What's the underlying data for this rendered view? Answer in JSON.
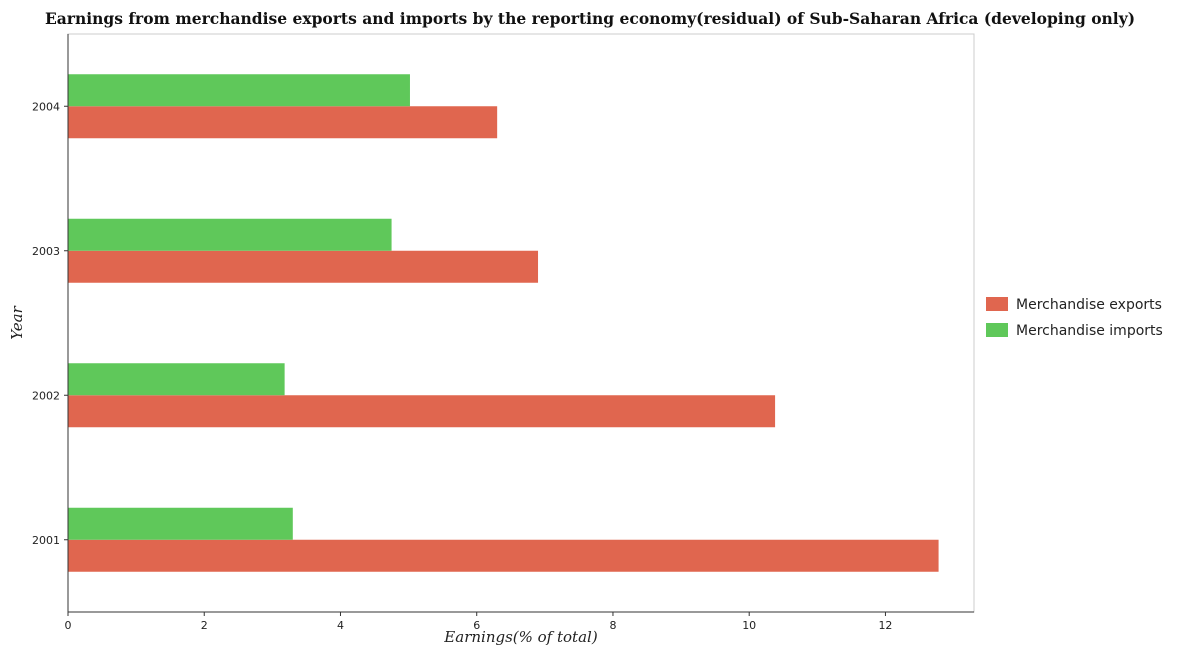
{
  "chart_data": {
    "type": "bar",
    "orientation": "horizontal",
    "title": "Earnings from merchandise exports and imports by the reporting economy(residual) of Sub-Saharan Africa (developing only)",
    "xlabel": "Earnings(% of total)",
    "ylabel": "Year",
    "categories": [
      "2001",
      "2002",
      "2003",
      "2004"
    ],
    "series": [
      {
        "name": "Merchandise exports",
        "color": "#e0664f",
        "values": [
          12.78,
          10.38,
          6.9,
          6.3
        ]
      },
      {
        "name": "Merchandise imports",
        "color": "#5fc85a",
        "values": [
          3.3,
          3.18,
          4.75,
          5.02
        ]
      }
    ],
    "xlim": [
      0,
      13.3
    ],
    "xticks": [
      "0",
      "2",
      "4",
      "6",
      "8",
      "10",
      "12"
    ],
    "grid": false,
    "legend_position": "right"
  }
}
